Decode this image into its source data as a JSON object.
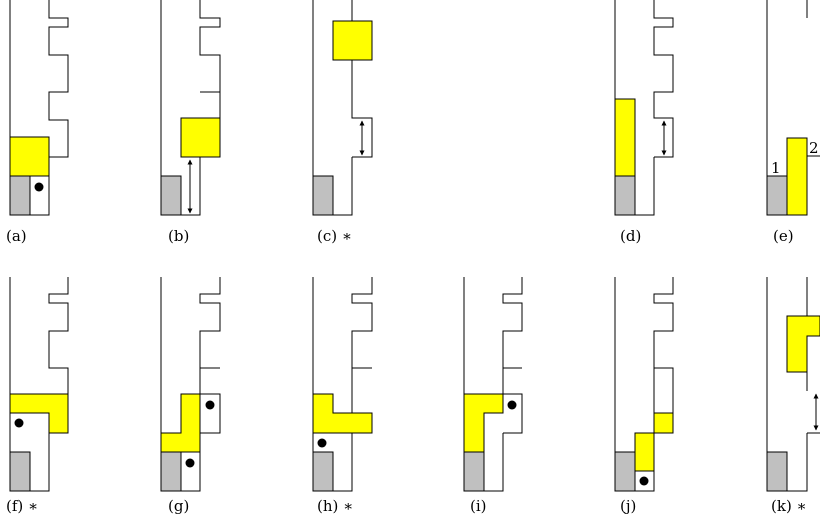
{
  "colors": {
    "piece": "#ffff00",
    "block": "#c0c0c0",
    "line": "#000000"
  },
  "panels": [
    {
      "id": "a",
      "label": "(a)"
    },
    {
      "id": "b",
      "label": "(b)"
    },
    {
      "id": "c",
      "label": "(c) ∗"
    },
    {
      "id": "d",
      "label": "(d)"
    },
    {
      "id": "e",
      "label": "(e)",
      "marks": [
        "1",
        "2"
      ]
    },
    {
      "id": "f",
      "label": "(f) ∗"
    },
    {
      "id": "g",
      "label": "(g)"
    },
    {
      "id": "h",
      "label": "(h) ∗"
    },
    {
      "id": "i",
      "label": "(i)"
    },
    {
      "id": "j",
      "label": "(j)"
    },
    {
      "id": "k",
      "label": "(k) ∗"
    }
  ]
}
